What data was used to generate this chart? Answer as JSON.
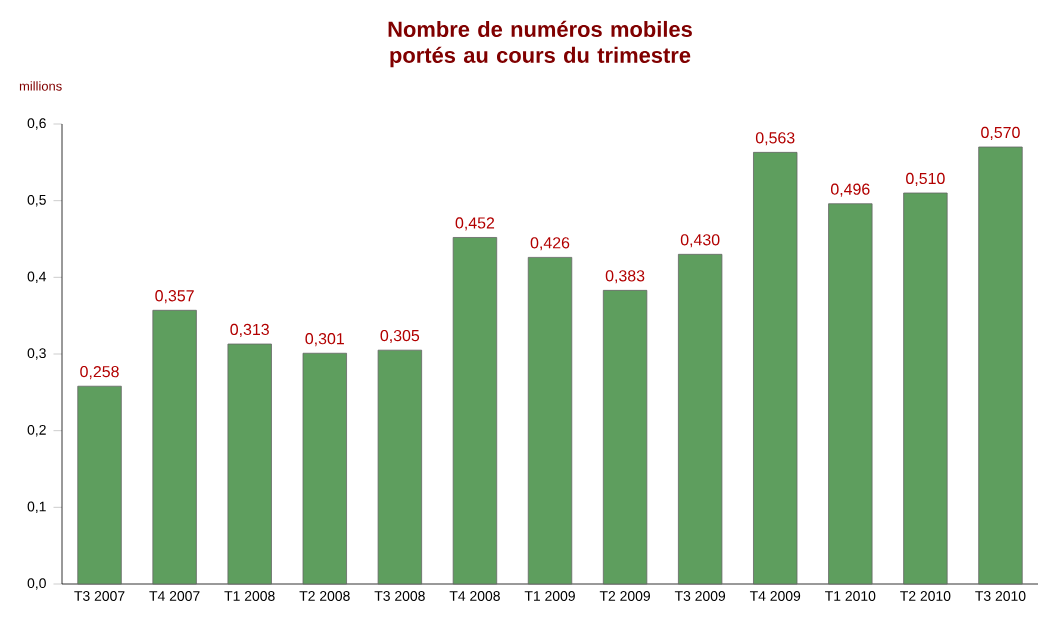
{
  "chart_data": {
    "type": "bar",
    "title": "Nombre de numéros mobiles portés au cours du trimestre",
    "ylabel": "millions",
    "categories": [
      "T3 2007",
      "T4 2007",
      "T1 2008",
      "T2 2008",
      "T3 2008",
      "T4 2008",
      "T1 2009",
      "T2 2009",
      "T3 2009",
      "T4 2009",
      "T1 2010",
      "T2 2010",
      "T3 2010"
    ],
    "values": [
      0.258,
      0.357,
      0.313,
      0.301,
      0.305,
      0.452,
      0.426,
      0.383,
      0.43,
      0.563,
      0.496,
      0.51,
      0.57
    ],
    "value_labels": [
      "0,258",
      "0,357",
      "0,313",
      "0,301",
      "0,305",
      "0,452",
      "0,426",
      "0,383",
      "0,430",
      "0,563",
      "0,496",
      "0,510",
      "0,570"
    ],
    "color": "#5e9e5e",
    "ylim": [
      0,
      0.6
    ],
    "yticks": [
      {
        "value": 0,
        "label": "0,0"
      },
      {
        "value": 0.1,
        "label": "0,1"
      },
      {
        "value": 0.2,
        "label": "0,2"
      },
      {
        "value": 0.3,
        "label": "0,3"
      },
      {
        "value": 0.4,
        "label": "0,4"
      },
      {
        "value": 0.5,
        "label": "0,5"
      },
      {
        "value": 0.6,
        "label": "0,6"
      }
    ]
  }
}
